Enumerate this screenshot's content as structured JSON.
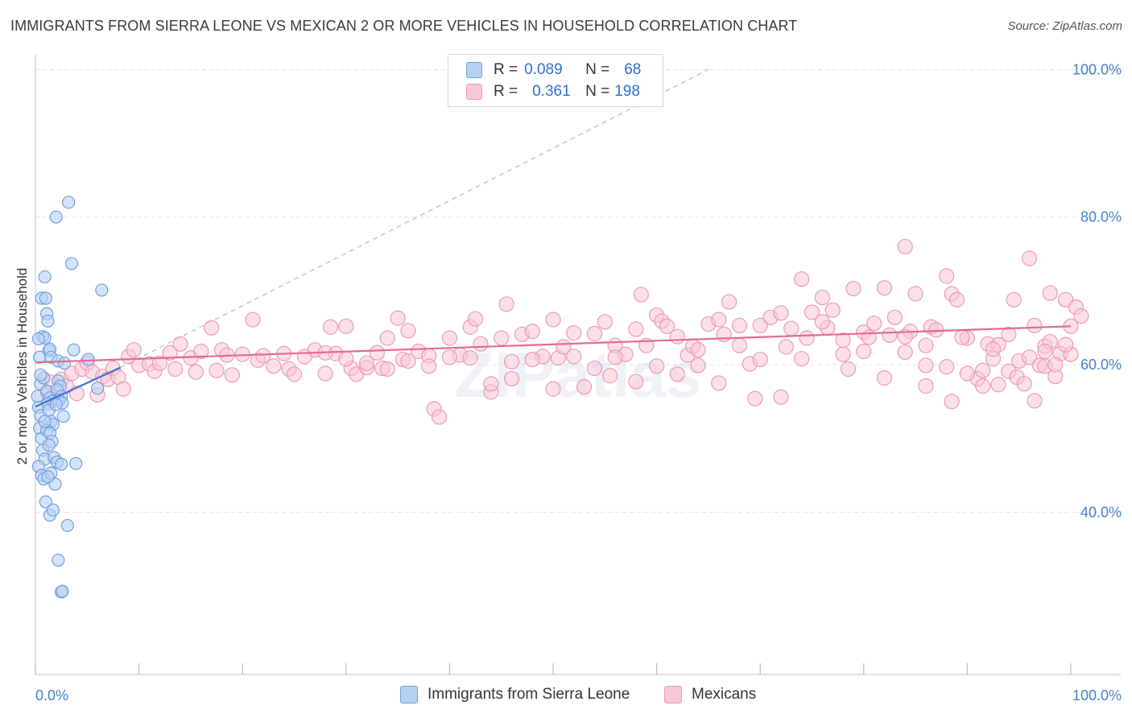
{
  "header": {
    "title": "IMMIGRANTS FROM SIERRA LEONE VS MEXICAN 2 OR MORE VEHICLES IN HOUSEHOLD CORRELATION CHART",
    "source": "Source: ZipAtlas.com"
  },
  "watermark": "ZIPatlas",
  "legend": {
    "rows": [
      {
        "r_label": "R =",
        "r_value": "0.089",
        "n_label": "N =",
        "n_value": "68"
      },
      {
        "r_label": "R =",
        "r_value": "0.361",
        "n_label": "N =",
        "n_value": "198"
      }
    ]
  },
  "bottom_legend": {
    "items": [
      "Immigrants from Sierra Leone",
      "Mexicans"
    ]
  },
  "colors": {
    "sierra_fill": "#b8d1f3",
    "sierra_stroke": "#6f9fe0",
    "sierra_line": "#3d73d1",
    "mexican_fill": "#f9c7d6",
    "mexican_stroke": "#ec9ab4",
    "mexican_line": "#e46a93",
    "tick_text": "#4a7fc8",
    "grid": "#e4e4e4"
  },
  "chart_data": {
    "type": "scatter",
    "xlabel": "",
    "ylabel": "2 or more Vehicles in Household",
    "xlim": [
      0,
      100
    ],
    "ylim": [
      18,
      102
    ],
    "x_tick_labels": [
      "0.0%",
      "100.0%"
    ],
    "y_ticks": [
      40,
      60,
      80,
      100
    ],
    "y_tick_labels": [
      "40.0%",
      "60.0%",
      "80.0%",
      "100.0%"
    ],
    "grid": true,
    "legend_position": "top-center",
    "series": [
      {
        "name": "Immigrants from Sierra Leone",
        "R": 0.089,
        "N": 68,
        "trend": {
          "x": [
            0,
            8.2
          ],
          "y": [
            54.3,
            59.6
          ]
        },
        "trend_extension": {
          "x": [
            8.2,
            65
          ],
          "y": [
            59.6,
            100
          ]
        },
        "points": [
          [
            0.2,
            55.7
          ],
          [
            0.3,
            54.2
          ],
          [
            0.5,
            53.1
          ],
          [
            0.4,
            51.4
          ],
          [
            0.6,
            50.0
          ],
          [
            0.7,
            48.4
          ],
          [
            0.9,
            47.2
          ],
          [
            0.3,
            46.2
          ],
          [
            0.6,
            45.0
          ],
          [
            0.8,
            44.5
          ],
          [
            0.5,
            57.4
          ],
          [
            0.8,
            58.2
          ],
          [
            0.4,
            61.0
          ],
          [
            0.7,
            63.8
          ],
          [
            0.9,
            63.6
          ],
          [
            0.6,
            69.0
          ],
          [
            0.9,
            71.9
          ],
          [
            1.0,
            69.0
          ],
          [
            1.1,
            66.9
          ],
          [
            1.2,
            65.9
          ],
          [
            1.3,
            61.9
          ],
          [
            1.4,
            62.1
          ],
          [
            1.5,
            61.0
          ],
          [
            1.1,
            56.4
          ],
          [
            1.4,
            55.5
          ],
          [
            1.6,
            55.0
          ],
          [
            1.2,
            54.7
          ],
          [
            1.3,
            53.8
          ],
          [
            1.5,
            52.3
          ],
          [
            1.7,
            51.9
          ],
          [
            1.1,
            51.1
          ],
          [
            1.4,
            50.7
          ],
          [
            1.6,
            49.6
          ],
          [
            1.3,
            49.1
          ],
          [
            1.8,
            47.4
          ],
          [
            1.5,
            45.3
          ],
          [
            1.9,
            43.8
          ],
          [
            1.0,
            41.4
          ],
          [
            1.4,
            39.6
          ],
          [
            1.7,
            40.3
          ],
          [
            2.2,
            57.8
          ],
          [
            2.4,
            57.1
          ],
          [
            2.1,
            56.6
          ],
          [
            2.5,
            55.7
          ],
          [
            2.3,
            55.2
          ],
          [
            2.6,
            54.8
          ],
          [
            2.0,
            54.6
          ],
          [
            2.2,
            60.5
          ],
          [
            2.8,
            60.2
          ],
          [
            2.1,
            46.8
          ],
          [
            2.5,
            46.5
          ],
          [
            3.2,
            82.0
          ],
          [
            2.0,
            80.0
          ],
          [
            3.5,
            73.7
          ],
          [
            6.4,
            70.1
          ],
          [
            3.7,
            62.0
          ],
          [
            5.1,
            60.7
          ],
          [
            6.0,
            56.8
          ],
          [
            3.9,
            46.6
          ],
          [
            3.1,
            38.2
          ],
          [
            2.2,
            33.5
          ],
          [
            2.5,
            29.2
          ],
          [
            2.6,
            29.3
          ],
          [
            0.3,
            63.5
          ],
          [
            0.9,
            52.3
          ],
          [
            1.2,
            44.8
          ],
          [
            2.7,
            53.0
          ],
          [
            0.5,
            58.6
          ]
        ]
      },
      {
        "name": "Mexicans",
        "R": 0.361,
        "N": 198,
        "trend": {
          "x": [
            0,
            100
          ],
          "y": [
            60.3,
            65.2
          ]
        },
        "points": [
          [
            1.2,
            56.2
          ],
          [
            1.5,
            57.6
          ],
          [
            2.0,
            55.3
          ],
          [
            2.5,
            58.0
          ],
          [
            3.0,
            57.1
          ],
          [
            3.5,
            58.8
          ],
          [
            4.0,
            56.1
          ],
          [
            4.5,
            59.4
          ],
          [
            5.0,
            60.2
          ],
          [
            5.5,
            59.0
          ],
          [
            6.0,
            55.9
          ],
          [
            6.5,
            58.4
          ],
          [
            7.0,
            58.0
          ],
          [
            7.5,
            59.5
          ],
          [
            8.0,
            58.3
          ],
          [
            8.5,
            56.7
          ],
          [
            9.0,
            61.1
          ],
          [
            9.5,
            62.0
          ],
          [
            10.0,
            59.9
          ],
          [
            11.0,
            60.1
          ],
          [
            11.5,
            59.1
          ],
          [
            12.0,
            60.2
          ],
          [
            13.0,
            61.6
          ],
          [
            13.5,
            59.4
          ],
          [
            14.0,
            62.8
          ],
          [
            15.0,
            60.9
          ],
          [
            15.5,
            59.0
          ],
          [
            16.0,
            61.8
          ],
          [
            17.0,
            65.0
          ],
          [
            17.5,
            59.2
          ],
          [
            18.0,
            62.0
          ],
          [
            18.5,
            61.3
          ],
          [
            19.0,
            58.6
          ],
          [
            20.0,
            61.4
          ],
          [
            21.0,
            66.1
          ],
          [
            21.5,
            60.6
          ],
          [
            22.0,
            61.2
          ],
          [
            23.0,
            59.8
          ],
          [
            24.0,
            61.5
          ],
          [
            24.5,
            59.4
          ],
          [
            25.0,
            58.7
          ],
          [
            26.0,
            61.1
          ],
          [
            27.0,
            62.0
          ],
          [
            28.0,
            58.8
          ],
          [
            28.5,
            65.1
          ],
          [
            29.0,
            61.5
          ],
          [
            30.0,
            65.2
          ],
          [
            30.5,
            59.5
          ],
          [
            31.0,
            58.7
          ],
          [
            32.0,
            59.6
          ],
          [
            33.0,
            61.6
          ],
          [
            33.5,
            59.5
          ],
          [
            34.0,
            63.6
          ],
          [
            35.0,
            66.3
          ],
          [
            35.5,
            60.7
          ],
          [
            36.0,
            64.6
          ],
          [
            37.0,
            61.8
          ],
          [
            38.0,
            61.2
          ],
          [
            38.5,
            54.0
          ],
          [
            39.0,
            52.9
          ],
          [
            40.0,
            63.6
          ],
          [
            41.0,
            61.3
          ],
          [
            42.0,
            65.1
          ],
          [
            42.5,
            66.2
          ],
          [
            43.0,
            62.8
          ],
          [
            44.0,
            56.3
          ],
          [
            45.0,
            63.6
          ],
          [
            45.5,
            68.2
          ],
          [
            46.0,
            60.4
          ],
          [
            47.0,
            64.1
          ],
          [
            48.0,
            64.5
          ],
          [
            49.0,
            61.1
          ],
          [
            50.0,
            66.1
          ],
          [
            50.5,
            60.9
          ],
          [
            51.0,
            62.4
          ],
          [
            52.0,
            61.1
          ],
          [
            53.0,
            57.0
          ],
          [
            54.0,
            64.2
          ],
          [
            55.0,
            65.8
          ],
          [
            55.5,
            58.5
          ],
          [
            56.0,
            62.6
          ],
          [
            57.0,
            61.4
          ],
          [
            58.0,
            64.8
          ],
          [
            58.5,
            69.5
          ],
          [
            59.0,
            62.6
          ],
          [
            60.0,
            66.7
          ],
          [
            60.5,
            65.9
          ],
          [
            61.0,
            65.2
          ],
          [
            62.0,
            63.8
          ],
          [
            63.0,
            61.3
          ],
          [
            63.5,
            62.5
          ],
          [
            64.0,
            59.9
          ],
          [
            65.0,
            65.5
          ],
          [
            66.0,
            66.1
          ],
          [
            66.5,
            64.1
          ],
          [
            67.0,
            68.5
          ],
          [
            68.0,
            65.3
          ],
          [
            69.0,
            60.1
          ],
          [
            69.5,
            55.4
          ],
          [
            70.0,
            65.3
          ],
          [
            71.0,
            66.4
          ],
          [
            72.0,
            67.0
          ],
          [
            72.5,
            62.4
          ],
          [
            73.0,
            64.9
          ],
          [
            74.0,
            71.6
          ],
          [
            74.5,
            63.6
          ],
          [
            75.0,
            67.1
          ],
          [
            76.0,
            69.1
          ],
          [
            76.5,
            65.0
          ],
          [
            77.0,
            67.4
          ],
          [
            78.0,
            61.4
          ],
          [
            78.5,
            59.4
          ],
          [
            79.0,
            70.3
          ],
          [
            80.0,
            64.4
          ],
          [
            80.5,
            63.7
          ],
          [
            81.0,
            65.6
          ],
          [
            82.0,
            70.4
          ],
          [
            82.5,
            64.0
          ],
          [
            83.0,
            66.4
          ],
          [
            84.0,
            76.0
          ],
          [
            84.5,
            64.5
          ],
          [
            85.0,
            69.6
          ],
          [
            86.0,
            59.9
          ],
          [
            86.5,
            65.1
          ],
          [
            87.0,
            64.7
          ],
          [
            88.0,
            72.0
          ],
          [
            88.5,
            69.6
          ],
          [
            89.0,
            68.8
          ],
          [
            90.0,
            63.6
          ],
          [
            91.0,
            58.1
          ],
          [
            91.5,
            59.2
          ],
          [
            92.0,
            62.8
          ],
          [
            92.5,
            60.8
          ],
          [
            93.0,
            62.7
          ],
          [
            94.0,
            64.1
          ],
          [
            94.5,
            68.8
          ],
          [
            95.0,
            60.5
          ],
          [
            96.0,
            61.0
          ],
          [
            96.5,
            65.3
          ],
          [
            97.0,
            59.9
          ],
          [
            97.5,
            62.5
          ],
          [
            98.0,
            63.1
          ],
          [
            98.5,
            58.4
          ],
          [
            99.0,
            61.5
          ],
          [
            100.0,
            65.2
          ],
          [
            84.0,
            61.7
          ],
          [
            86.0,
            57.1
          ],
          [
            88.5,
            55.0
          ],
          [
            90.0,
            58.8
          ],
          [
            92.5,
            62.1
          ],
          [
            94.0,
            59.1
          ],
          [
            94.8,
            58.3
          ],
          [
            96.5,
            55.1
          ],
          [
            97.5,
            59.8
          ],
          [
            98.5,
            60.0
          ],
          [
            100.0,
            61.4
          ],
          [
            96.0,
            74.4
          ],
          [
            98.0,
            69.7
          ],
          [
            99.5,
            68.8
          ],
          [
            100.5,
            67.8
          ],
          [
            101.0,
            66.6
          ],
          [
            99.5,
            62.7
          ],
          [
            97.5,
            61.8
          ],
          [
            95.5,
            57.4
          ],
          [
            93.0,
            57.3
          ],
          [
            91.5,
            57.1
          ],
          [
            89.5,
            63.7
          ],
          [
            88.0,
            59.7
          ],
          [
            86.0,
            62.6
          ],
          [
            84.0,
            63.8
          ],
          [
            82.0,
            58.2
          ],
          [
            80.0,
            61.8
          ],
          [
            78.0,
            63.3
          ],
          [
            76.0,
            65.8
          ],
          [
            74.0,
            60.8
          ],
          [
            72.0,
            55.6
          ],
          [
            70.0,
            60.7
          ],
          [
            68.0,
            62.6
          ],
          [
            66.0,
            57.5
          ],
          [
            64.0,
            62.0
          ],
          [
            62.0,
            58.7
          ],
          [
            60.0,
            59.8
          ],
          [
            58.0,
            57.7
          ],
          [
            56.0,
            61.0
          ],
          [
            54.0,
            59.5
          ],
          [
            52.0,
            64.3
          ],
          [
            50.0,
            56.7
          ],
          [
            48.0,
            60.7
          ],
          [
            46.0,
            58.1
          ],
          [
            44.0,
            57.4
          ],
          [
            42.0,
            60.9
          ],
          [
            40.0,
            61.0
          ],
          [
            38.0,
            59.8
          ],
          [
            36.0,
            60.5
          ],
          [
            34.0,
            59.4
          ],
          [
            32.0,
            60.2
          ],
          [
            30.0,
            60.8
          ],
          [
            28.0,
            61.6
          ]
        ]
      }
    ]
  }
}
